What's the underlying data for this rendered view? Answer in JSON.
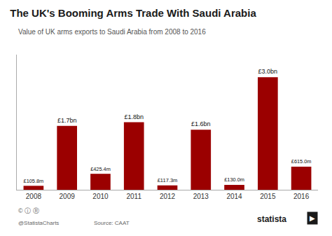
{
  "chart_data": {
    "type": "bar",
    "title": "The UK's Booming Arms Trade With Saudi Arabia",
    "subtitle": "Value of UK arms exports to Saudi Arabia from 2008 to 2016",
    "categories": [
      "2008",
      "2009",
      "2010",
      "2011",
      "2012",
      "2013",
      "2014",
      "2015",
      "2016"
    ],
    "values": [
      105.8,
      1700,
      425.4,
      1800,
      117.3,
      1600,
      130.0,
      3000,
      615.0
    ],
    "value_labels": [
      "£105.8m",
      "£1.7bn",
      "£425.4m",
      "£1.8bn",
      "£117.3m",
      "£1.6bn",
      "£130.0m",
      "£3.0bn",
      "£615.0m"
    ],
    "color": "#9B0000",
    "ylim": [
      0,
      3600
    ],
    "grid": false,
    "data_labels": true,
    "tick_labels": "x",
    "annotations": [
      "© ⓘ Ⓡ",
      "@StatistaCharts",
      "Source: CAAT",
      "statista",
      "▶"
    ]
  }
}
